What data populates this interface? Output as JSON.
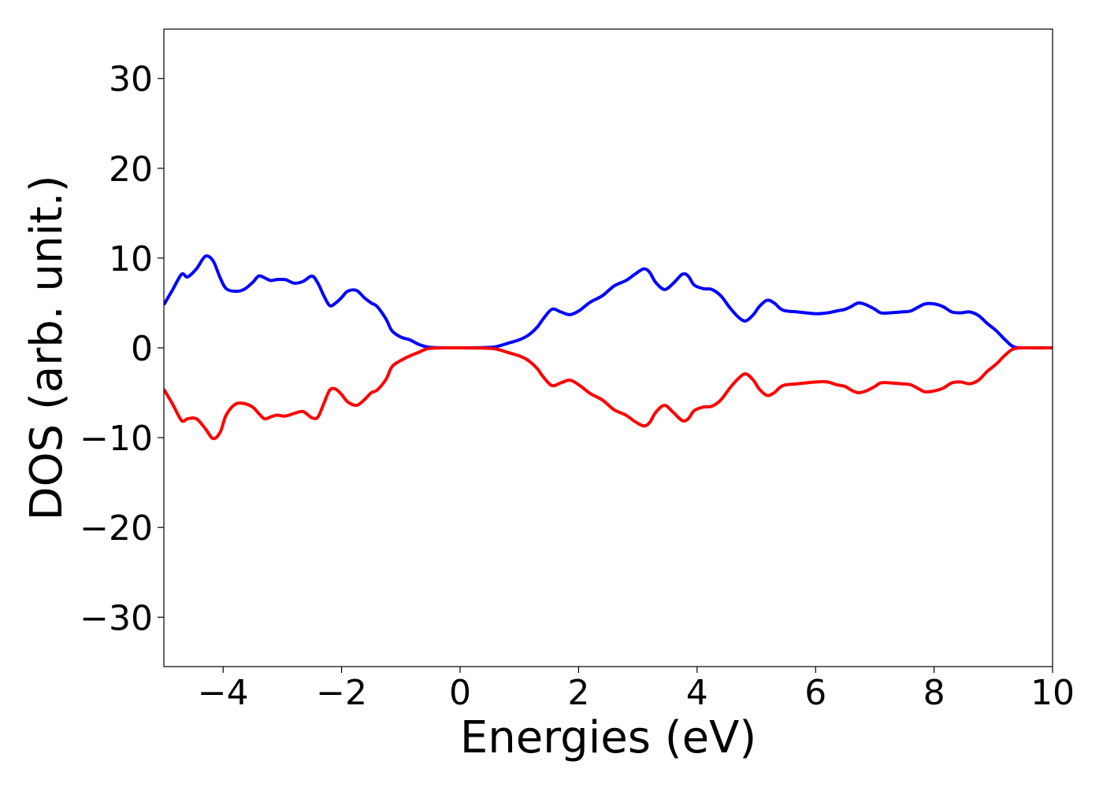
{
  "chart_data": {
    "type": "line",
    "title": "",
    "xlabel": "Energies (eV)",
    "ylabel": "DOS (arb. unit.)",
    "xlim": [
      -5,
      10
    ],
    "ylim": [
      -35.5,
      35.5
    ],
    "xticks": [
      -4,
      -2,
      0,
      2,
      4,
      6,
      8,
      10
    ],
    "yticks": [
      30,
      20,
      10,
      0,
      -10,
      -20,
      -30
    ],
    "xtick_labels": [
      "−4",
      "−2",
      "0",
      "2",
      "4",
      "6",
      "8",
      "10"
    ],
    "ytick_labels": [
      "30",
      "20",
      "10",
      "0",
      "−10",
      "−20",
      "−30"
    ],
    "grid": false,
    "legend": "none",
    "series": [
      {
        "color": "#0000ff",
        "x": [
          -5.0,
          -4.85,
          -4.7,
          -4.6,
          -4.45,
          -4.3,
          -4.17,
          -4.05,
          -3.95,
          -3.8,
          -3.65,
          -3.5,
          -3.4,
          -3.3,
          -3.2,
          -3.1,
          -2.95,
          -2.8,
          -2.65,
          -2.5,
          -2.4,
          -2.3,
          -2.2,
          -2.1,
          -2.0,
          -1.9,
          -1.75,
          -1.62,
          -1.5,
          -1.4,
          -1.25,
          -1.15,
          -1.0,
          -0.85,
          -0.7,
          -0.5,
          0.0,
          0.5,
          0.65,
          0.8,
          1.0,
          1.15,
          1.3,
          1.4,
          1.55,
          1.7,
          1.85,
          2.0,
          2.2,
          2.4,
          2.6,
          2.8,
          2.95,
          3.1,
          3.2,
          3.3,
          3.45,
          3.6,
          3.75,
          3.85,
          3.95,
          4.1,
          4.25,
          4.4,
          4.55,
          4.7,
          4.82,
          4.95,
          5.05,
          5.18,
          5.3,
          5.45,
          5.7,
          6.0,
          6.2,
          6.35,
          6.5,
          6.6,
          6.72,
          6.85,
          7.0,
          7.1,
          7.25,
          7.45,
          7.6,
          7.75,
          7.85,
          8.0,
          8.15,
          8.3,
          8.45,
          8.6,
          8.75,
          8.9,
          9.05,
          9.2,
          9.35,
          9.6,
          10.0
        ],
        "values": [
          4.8,
          6.5,
          8.2,
          7.9,
          8.8,
          10.2,
          9.7,
          7.8,
          6.6,
          6.3,
          6.5,
          7.3,
          8.0,
          7.8,
          7.5,
          7.6,
          7.6,
          7.2,
          7.4,
          8.0,
          7.2,
          5.8,
          4.7,
          5.0,
          5.6,
          6.3,
          6.4,
          5.6,
          5.0,
          4.6,
          3.2,
          1.9,
          1.2,
          0.9,
          0.4,
          0.05,
          0.0,
          0.05,
          0.2,
          0.5,
          0.9,
          1.4,
          2.3,
          3.2,
          4.3,
          4.0,
          3.7,
          4.1,
          5.1,
          5.8,
          6.9,
          7.5,
          8.2,
          8.8,
          8.4,
          7.3,
          6.5,
          7.2,
          8.2,
          8.0,
          7.0,
          6.6,
          6.5,
          5.8,
          4.5,
          3.4,
          3.0,
          3.7,
          4.6,
          5.3,
          5.0,
          4.2,
          4.0,
          3.8,
          3.9,
          4.1,
          4.3,
          4.6,
          5.0,
          4.8,
          4.3,
          3.9,
          3.9,
          4.0,
          4.1,
          4.6,
          4.9,
          4.9,
          4.6,
          4.0,
          3.9,
          4.0,
          3.6,
          2.7,
          1.9,
          0.9,
          0.1,
          0.0,
          0.0
        ]
      },
      {
        "color": "#ff0000",
        "x": [
          -5.0,
          -4.85,
          -4.7,
          -4.6,
          -4.45,
          -4.3,
          -4.17,
          -4.05,
          -3.95,
          -3.8,
          -3.65,
          -3.5,
          -3.4,
          -3.3,
          -3.2,
          -3.1,
          -2.95,
          -2.8,
          -2.65,
          -2.5,
          -2.4,
          -2.3,
          -2.2,
          -2.1,
          -2.0,
          -1.9,
          -1.75,
          -1.62,
          -1.5,
          -1.4,
          -1.25,
          -1.15,
          -1.0,
          -0.85,
          -0.7,
          -0.5,
          0.0,
          0.5,
          0.65,
          0.8,
          1.0,
          1.15,
          1.3,
          1.4,
          1.55,
          1.7,
          1.85,
          2.0,
          2.2,
          2.4,
          2.6,
          2.8,
          2.95,
          3.1,
          3.2,
          3.3,
          3.45,
          3.6,
          3.75,
          3.85,
          3.95,
          4.1,
          4.25,
          4.4,
          4.55,
          4.7,
          4.82,
          4.95,
          5.05,
          5.18,
          5.3,
          5.45,
          5.7,
          6.0,
          6.2,
          6.35,
          6.5,
          6.6,
          6.72,
          6.85,
          7.0,
          7.1,
          7.25,
          7.45,
          7.6,
          7.75,
          7.85,
          8.0,
          8.15,
          8.3,
          8.45,
          8.6,
          8.75,
          8.9,
          9.05,
          9.2,
          9.35,
          9.6,
          10.0
        ],
        "values": [
          -4.6,
          -6.3,
          -8.1,
          -7.9,
          -7.9,
          -9.0,
          -10.1,
          -9.4,
          -7.5,
          -6.3,
          -6.2,
          -6.6,
          -7.3,
          -7.9,
          -7.7,
          -7.5,
          -7.6,
          -7.3,
          -7.1,
          -7.8,
          -7.7,
          -6.2,
          -4.7,
          -4.6,
          -5.2,
          -6.0,
          -6.4,
          -5.8,
          -5.0,
          -4.7,
          -3.5,
          -2.1,
          -1.4,
          -0.9,
          -0.5,
          -0.05,
          0.0,
          -0.05,
          -0.2,
          -0.5,
          -0.9,
          -1.4,
          -2.3,
          -3.2,
          -4.2,
          -3.9,
          -3.6,
          -4.1,
          -5.1,
          -5.8,
          -6.9,
          -7.5,
          -8.2,
          -8.7,
          -8.3,
          -7.2,
          -6.4,
          -7.2,
          -8.1,
          -7.9,
          -7.0,
          -6.6,
          -6.5,
          -5.8,
          -4.5,
          -3.4,
          -2.9,
          -3.6,
          -4.6,
          -5.3,
          -5.0,
          -4.2,
          -4.0,
          -3.8,
          -3.8,
          -4.1,
          -4.3,
          -4.7,
          -5.0,
          -4.8,
          -4.3,
          -3.9,
          -3.9,
          -4.0,
          -4.1,
          -4.6,
          -4.9,
          -4.8,
          -4.5,
          -3.9,
          -3.8,
          -4.0,
          -3.6,
          -2.6,
          -1.8,
          -0.8,
          -0.1,
          0.0,
          0.0
        ]
      }
    ]
  }
}
